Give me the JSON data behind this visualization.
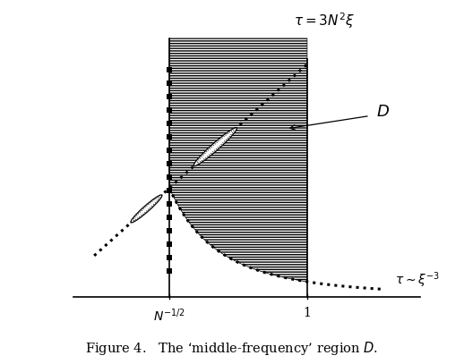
{
  "fig_width": 5.18,
  "fig_height": 4.07,
  "dpi": 100,
  "title_text": "$\\tau = 3N^2\\xi$",
  "label_D": "$D$",
  "label_tau_xi": "$\\tau \\sim \\xi^{-3}$",
  "label_N": "$N^{-1/2}$",
  "label_1": "1",
  "caption": "Figure 4.   The ‘middle-frequency’ region $D$.",
  "background_color": "#ffffff",
  "line_color": "#000000"
}
